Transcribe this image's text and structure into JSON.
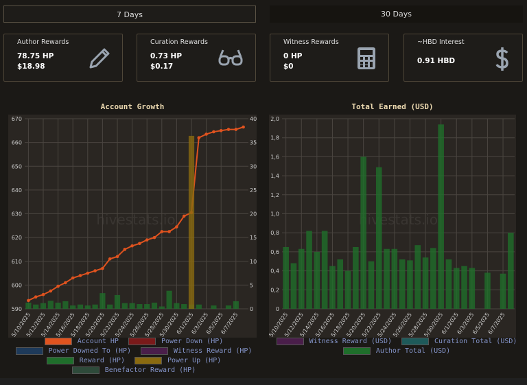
{
  "tabs": [
    "7 Days",
    "30 Days"
  ],
  "cards": [
    {
      "title": "Author Rewards",
      "lines": [
        "78.75 HP",
        "$18.98"
      ]
    },
    {
      "title": "Curation Rewards",
      "lines": [
        "0.73 HP",
        "$0.17"
      ]
    },
    {
      "title": "Witness Rewards",
      "lines": [
        "0 HP",
        "$0"
      ]
    },
    {
      "title": "~HBD Interest",
      "lines": [
        "0.91 HBD"
      ]
    }
  ],
  "watermark": "hivestats.io",
  "chart_data": [
    {
      "type": "combo",
      "title": "Account Growth",
      "categories": [
        "5/10/2025",
        null,
        "5/12/2025",
        null,
        "5/14/2025",
        null,
        "5/16/2025",
        null,
        "5/18/2025",
        null,
        "5/20/2025",
        null,
        "5/22/2025",
        null,
        "5/24/2025",
        null,
        "5/26/2025",
        null,
        "5/28/2025",
        null,
        "5/30/2025",
        null,
        "6/1/2025",
        null,
        "6/3/2025",
        null,
        "6/5/2025",
        null,
        "6/7/2025",
        null
      ],
      "ylim": [
        590,
        670
      ],
      "yticks": [
        590,
        600,
        610,
        620,
        630,
        640,
        650,
        660,
        670
      ],
      "y2lim": [
        0,
        40
      ],
      "y2ticks": [
        0,
        5,
        10,
        15,
        20,
        25,
        30,
        35,
        40
      ],
      "grid": true,
      "series": [
        {
          "name": "Account HP",
          "type": "line",
          "color": "#e0531f",
          "values": [
            593.5,
            595,
            596,
            597.5,
            599.5,
            601,
            603,
            604,
            605,
            606,
            607,
            611,
            612,
            615,
            616.5,
            617.5,
            619,
            620,
            622.5,
            622.5,
            624.5,
            629,
            630.5,
            662,
            663.5,
            664.5,
            665,
            665.5,
            665.5,
            666.5
          ]
        },
        {
          "name": "Power Down (HP)",
          "type": "bar",
          "axis": "y2",
          "color": "#7a1a1a",
          "values": [
            0,
            0,
            0,
            0,
            0,
            0,
            0,
            0,
            0,
            0,
            0,
            0,
            0,
            0,
            0,
            0,
            0,
            0,
            0,
            0,
            0,
            0,
            0,
            0,
            0,
            0,
            0,
            0,
            0,
            0
          ]
        },
        {
          "name": "Power Downed To (HP)",
          "type": "bar",
          "axis": "y2",
          "color": "#1e3a5a",
          "values": [
            0,
            0,
            0,
            0,
            0,
            0,
            0,
            0,
            0,
            0,
            0,
            0,
            0,
            0,
            0,
            0,
            0,
            0,
            0,
            0,
            0,
            0,
            0,
            0,
            0,
            0,
            0,
            0,
            0,
            0
          ]
        },
        {
          "name": "Witness Reward (HP)",
          "type": "bar",
          "axis": "y2",
          "color": "#4a1e4a",
          "values": [
            0,
            0,
            0,
            0,
            0,
            0,
            0,
            0,
            0,
            0,
            0,
            0,
            0,
            0,
            0,
            0,
            0,
            0,
            0,
            0,
            0,
            0,
            0,
            0,
            0,
            0,
            0,
            0,
            0,
            0
          ]
        },
        {
          "name": "Reward (HP)",
          "type": "bar",
          "axis": "y2",
          "color": "#1f6e2b",
          "values": [
            1.3,
            0.9,
            1.2,
            1.7,
            1.3,
            1.6,
            0.7,
            0.9,
            0.7,
            0.9,
            3.3,
            0.9,
            2.9,
            1.2,
            1.2,
            1,
            1,
            1.3,
            0.5,
            3.8,
            1.2,
            1,
            0.9,
            0.9,
            0,
            0.7,
            0,
            0.7,
            1.6,
            0
          ]
        },
        {
          "name": "Power Up (HP)",
          "type": "bar",
          "axis": "y2",
          "color": "#8a6a10",
          "values": [
            0,
            0,
            0,
            0,
            0,
            0,
            0,
            0,
            0,
            0,
            0,
            0,
            0,
            0,
            0,
            0,
            0,
            0,
            0,
            0,
            0,
            0,
            36.4,
            0,
            0,
            0,
            0,
            0,
            0,
            0
          ]
        },
        {
          "name": "Benefactor Reward (HP)",
          "type": "bar",
          "axis": "y2",
          "color": "#2e4a3a",
          "values": [
            0,
            0,
            0,
            0,
            0,
            0,
            0,
            0,
            0,
            0,
            0,
            0,
            0,
            0,
            0,
            0,
            0,
            0,
            0,
            0,
            0,
            0,
            0,
            0,
            0,
            0,
            0,
            0,
            0,
            0
          ]
        }
      ]
    },
    {
      "type": "bar",
      "title": "Total Earned (USD)",
      "categories": [
        "5/10/2025",
        null,
        "5/12/2025",
        null,
        "5/14/2025",
        null,
        "5/16/2025",
        null,
        "5/18/2025",
        null,
        "5/20/2025",
        null,
        "5/22/2025",
        null,
        "5/24/2025",
        null,
        "5/26/2025",
        null,
        "5/28/2025",
        null,
        "5/30/2025",
        null,
        "6/1/2025",
        null,
        "6/3/2025",
        null,
        "6/5/2025",
        null,
        "6/7/2025",
        null
      ],
      "ylim": [
        0,
        2.0
      ],
      "yticks": [
        0,
        {
          "value": 0.2,
          "label": "0,2"
        },
        {
          "value": 0.4,
          "label": "0,4"
        },
        {
          "value": 0.6,
          "label": "0,6"
        },
        {
          "value": 0.8,
          "label": "0,8"
        },
        {
          "value": 1.0,
          "label": "1,0"
        },
        {
          "value": 1.2,
          "label": "1,2"
        },
        {
          "value": 1.4,
          "label": "1,4"
        },
        {
          "value": 1.6,
          "label": "1,6"
        },
        {
          "value": 1.8,
          "label": "1,8"
        },
        {
          "value": 2.0,
          "label": "2,0"
        }
      ],
      "grid": true,
      "series": [
        {
          "name": "Witness Reward (USD)",
          "type": "bar",
          "color": "#4a1e4a",
          "values": [
            0,
            0,
            0,
            0,
            0,
            0,
            0,
            0,
            0,
            0,
            0,
            0,
            0,
            0,
            0,
            0,
            0,
            0,
            0,
            0,
            0,
            0,
            0,
            0,
            0,
            0,
            0,
            0,
            0,
            0
          ]
        },
        {
          "name": "Curation Total (USD)",
          "type": "bar",
          "color": "#1e5a5a",
          "values": [
            0,
            0,
            0,
            0,
            0,
            0,
            0,
            0,
            0,
            0,
            0,
            0,
            0,
            0,
            0,
            0,
            0,
            0,
            0,
            0,
            0,
            0,
            0,
            0,
            0,
            0,
            0,
            0,
            0,
            0
          ]
        },
        {
          "name": "Author Total (USD)",
          "type": "bar",
          "color": "#1f6e2b",
          "values": [
            0.65,
            0.48,
            0.63,
            0.82,
            0.6,
            0.82,
            0.45,
            0.52,
            0.4,
            0.65,
            1.6,
            0.5,
            1.49,
            0.63,
            0.63,
            0.52,
            0.51,
            0.67,
            0.54,
            0.64,
            1.94,
            0.52,
            0.43,
            0.45,
            0.43,
            0,
            0.38,
            0,
            0.37,
            0.8
          ]
        }
      ]
    }
  ]
}
